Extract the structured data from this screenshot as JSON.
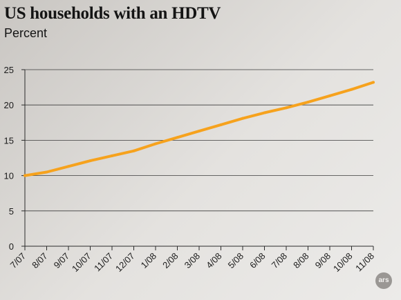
{
  "chart_data": {
    "type": "line",
    "title": "US households with an HDTV",
    "subtitle": "Percent",
    "xlabel": "",
    "ylabel": "",
    "categories": [
      "7/07",
      "8/07",
      "9/07",
      "10/07",
      "11/07",
      "12/07",
      "1/08",
      "2/08",
      "3/08",
      "4/08",
      "5/08",
      "6/08",
      "7/08",
      "8/08",
      "9/08",
      "10/08",
      "11/08"
    ],
    "series": [
      {
        "values": [
          10.0,
          10.5,
          11.3,
          12.1,
          12.8,
          13.5,
          14.5,
          15.4,
          16.3,
          17.2,
          18.1,
          18.9,
          19.6,
          20.4,
          21.3,
          22.2,
          23.2
        ]
      }
    ],
    "ylim": [
      0,
      25
    ],
    "yticks": [
      0,
      5,
      10,
      15,
      20,
      25
    ],
    "grid": true,
    "line_color": "#f6a21d"
  },
  "badge": {
    "text": "ars"
  }
}
